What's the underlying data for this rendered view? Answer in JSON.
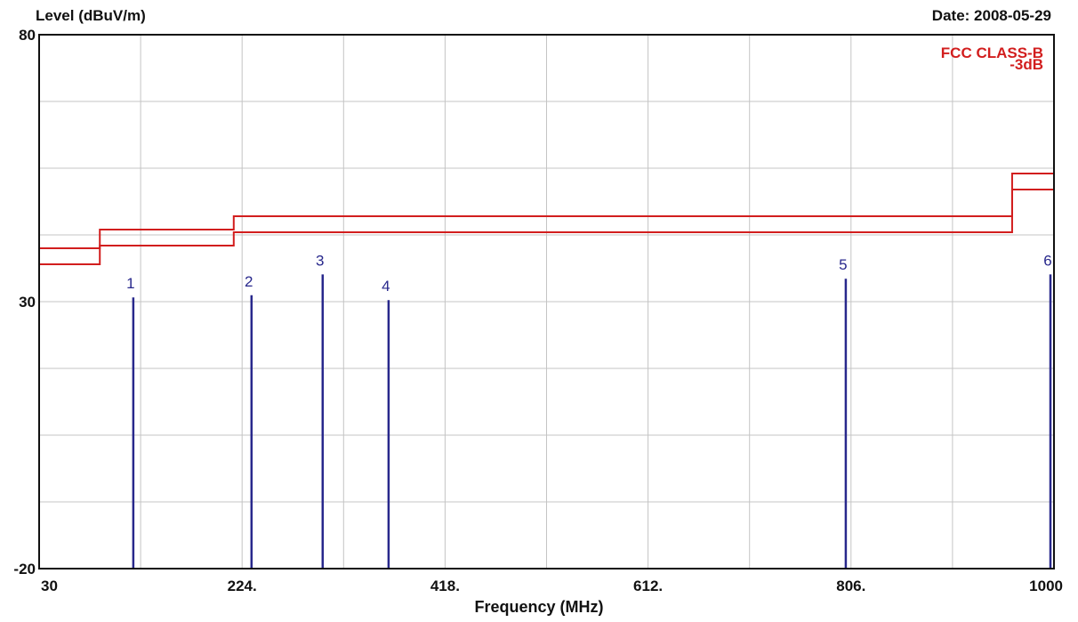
{
  "header": {
    "ylabel": "Level (dBuV/m)",
    "date": "Date: 2008-05-29"
  },
  "chart_data": {
    "type": "line",
    "xlabel": "Frequency (MHz)",
    "ylabel": "Level (dBuV/m)",
    "xlim": [
      30,
      1000
    ],
    "ylim": [
      -20,
      80
    ],
    "x_ticks": [
      30,
      224,
      418,
      612,
      806,
      1000
    ],
    "x_tick_labels": [
      "30",
      "224.",
      "418.",
      "612.",
      "806.",
      "1000"
    ],
    "y_ticks": [
      -20,
      30,
      80
    ],
    "y_tick_labels": [
      "-20",
      "30",
      "80"
    ],
    "grid": true,
    "grid_x_step": 97,
    "grid_y_step": 12.5,
    "legend_position": "top-right",
    "legend_lines": [
      "FCC CLASS-B",
      "-3dB"
    ],
    "limit_color": "#d21e1e",
    "marker_color": "#28288c",
    "series": [
      {
        "name": "FCC CLASS-B",
        "x": [
          30,
          88,
          88,
          216,
          216,
          960,
          960,
          1000
        ],
        "values": [
          40,
          40,
          43.5,
          43.5,
          46,
          46,
          54,
          54
        ]
      },
      {
        "name": "-3dB",
        "x": [
          30,
          88,
          88,
          216,
          216,
          960,
          960,
          1000
        ],
        "values": [
          37,
          37,
          40.5,
          40.5,
          43,
          43,
          51,
          51
        ]
      }
    ],
    "markers": [
      {
        "label": "1",
        "x": 120,
        "value": 30.8
      },
      {
        "label": "2",
        "x": 233,
        "value": 31.2
      },
      {
        "label": "3",
        "x": 301,
        "value": 35.1
      },
      {
        "label": "4",
        "x": 364,
        "value": 30.3
      },
      {
        "label": "5",
        "x": 801,
        "value": 34.3
      },
      {
        "label": "6",
        "x": 999,
        "value": 35.1
      }
    ]
  }
}
